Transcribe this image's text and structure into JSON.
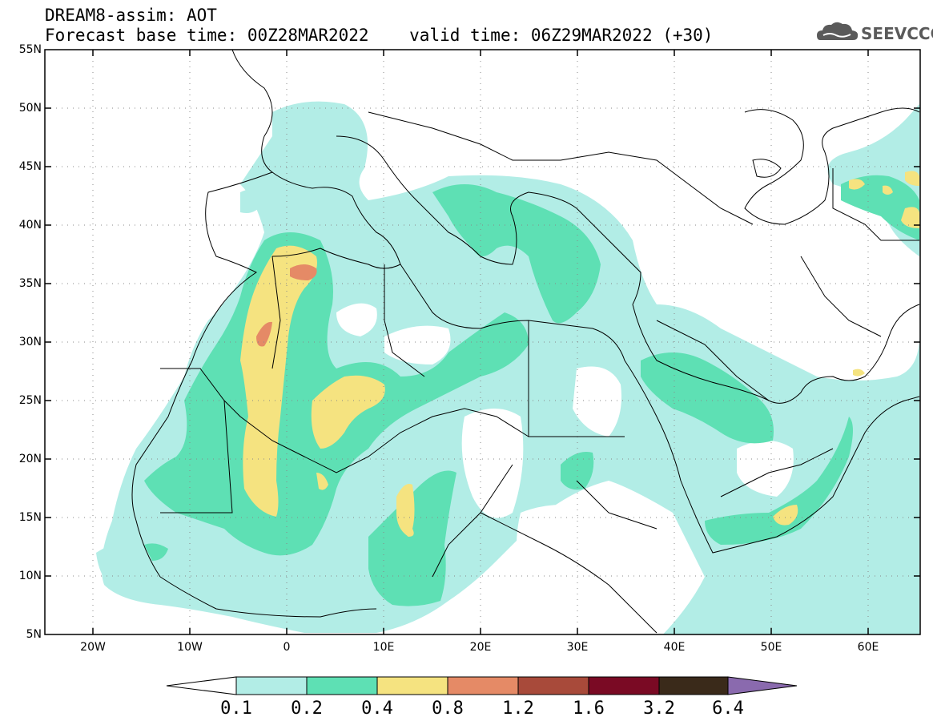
{
  "header": {
    "title": "DREAM8-assim: AOT",
    "base_time_label": "Forecast base time: 00Z28MAR2022",
    "valid_time_label": "valid time: 06Z29MAR2022 (+30)",
    "logo_text": "SEEVCCC"
  },
  "map": {
    "lat_labels": [
      "55N",
      "50N",
      "45N",
      "40N",
      "35N",
      "30N",
      "25N",
      "20N",
      "15N",
      "10N",
      "5N"
    ],
    "lon_labels": [
      "20W",
      "10W",
      "0",
      "10E",
      "20E",
      "30E",
      "40E",
      "50E",
      "60E"
    ]
  },
  "colorbar": {
    "labels": [
      "0.1",
      "0.2",
      "0.4",
      "0.8",
      "1.2",
      "1.6",
      "3.2",
      "6.4"
    ],
    "colors": [
      "#b2ede6",
      "#5ee0b4",
      "#f5e380",
      "#e58a66",
      "#a84a3a",
      "#7a0a24",
      "#3a2a1a",
      "#8a6aae"
    ]
  },
  "colors": {
    "level1": "#b2ede6",
    "level2": "#5ee0b4",
    "level3": "#f5e380",
    "level4": "#e58a66"
  }
}
